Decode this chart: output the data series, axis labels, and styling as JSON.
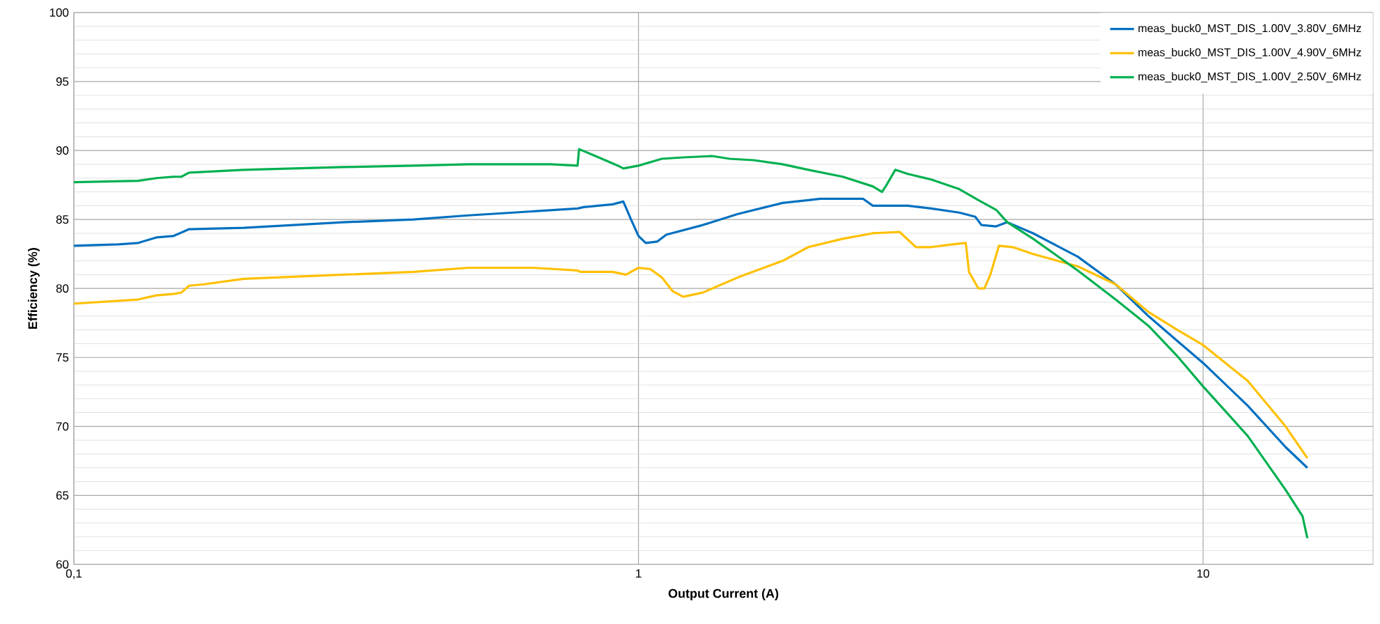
{
  "chart_data": {
    "type": "line",
    "xlabel": "Output Current (A)",
    "ylabel": "Efficiency (%)",
    "log": "x",
    "grid": true,
    "legend": "top right",
    "xlim": [
      0.1,
      20
    ],
    "xticks": [
      {
        "value": 0.1,
        "label": "0,1"
      },
      1,
      10
    ],
    "ylim": [
      60,
      100
    ],
    "yticks": [
      60,
      65,
      70,
      75,
      80,
      85,
      90,
      95,
      100
    ],
    "series": [
      {
        "name": "meas_buck0_MST_DIS_1.00V_3.80V_6MHz",
        "color": "#0070c0",
        "x": [
          0.1,
          0.12,
          0.13,
          0.14,
          0.15,
          0.16,
          0.2,
          0.3,
          0.4,
          0.5,
          0.6,
          0.78,
          0.8,
          0.9,
          0.94,
          0.97,
          1.0,
          1.03,
          1.08,
          1.12,
          1.3,
          1.5,
          1.8,
          2.0,
          2.1,
          2.5,
          2.6,
          3.0,
          3.3,
          3.7,
          3.95,
          4.05,
          4.3,
          4.5,
          5,
          6,
          7,
          8,
          9,
          10,
          12,
          14,
          15.3
        ],
        "values": [
          83.1,
          83.2,
          83.3,
          83.7,
          83.8,
          84.3,
          84.4,
          84.8,
          85.0,
          85.3,
          85.5,
          85.8,
          85.9,
          86.1,
          86.3,
          85.0,
          83.8,
          83.3,
          83.4,
          83.9,
          84.6,
          85.4,
          86.2,
          86.4,
          86.5,
          86.5,
          86.0,
          86.0,
          85.8,
          85.5,
          85.2,
          84.6,
          84.5,
          84.8,
          84.0,
          82.3,
          80.3,
          78.0,
          76.2,
          74.6,
          71.5,
          68.5,
          67.0
        ]
      },
      {
        "name": "meas_buck0_MST_DIS_1.00V_4.90V_6MHz",
        "color": "#ffc000",
        "x": [
          0.1,
          0.13,
          0.14,
          0.15,
          0.155,
          0.16,
          0.17,
          0.2,
          0.3,
          0.4,
          0.5,
          0.65,
          0.78,
          0.79,
          0.9,
          0.95,
          1.0,
          1.05,
          1.1,
          1.15,
          1.2,
          1.3,
          1.5,
          1.8,
          2.0,
          2.3,
          2.6,
          2.9,
          3.1,
          3.3,
          3.6,
          3.8,
          3.85,
          4.0,
          4.1,
          4.2,
          4.35,
          4.6,
          5,
          6,
          7,
          8,
          9,
          10,
          12,
          14,
          15.3
        ],
        "values": [
          78.9,
          79.2,
          79.5,
          79.6,
          79.7,
          80.2,
          80.3,
          80.7,
          81.0,
          81.2,
          81.5,
          81.5,
          81.3,
          81.2,
          81.2,
          81.0,
          81.5,
          81.4,
          80.8,
          79.8,
          79.4,
          79.7,
          80.8,
          82.0,
          83.0,
          83.6,
          84.0,
          84.1,
          83.0,
          83.0,
          83.2,
          83.3,
          81.2,
          80.0,
          80.0,
          81.0,
          83.1,
          83.0,
          82.5,
          81.6,
          80.3,
          78.3,
          77.0,
          75.9,
          73.3,
          70.0,
          67.7
        ]
      },
      {
        "name": "meas_buck0_MST_DIS_1.00V_2.50V_6MHz",
        "color": "#00b050",
        "x": [
          0.1,
          0.13,
          0.14,
          0.15,
          0.155,
          0.16,
          0.2,
          0.3,
          0.4,
          0.5,
          0.7,
          0.78,
          0.785,
          0.85,
          0.92,
          0.94,
          1.0,
          1.1,
          1.2,
          1.35,
          1.45,
          1.6,
          1.8,
          2.0,
          2.3,
          2.6,
          2.7,
          2.75,
          2.85,
          3.0,
          3.3,
          3.7,
          4.0,
          4.3,
          4.5,
          5,
          6,
          7,
          8,
          9,
          10,
          12,
          14,
          15,
          15.3
        ],
        "values": [
          87.7,
          87.8,
          88.0,
          88.1,
          88.1,
          88.4,
          88.6,
          88.8,
          88.9,
          89.0,
          89.0,
          88.9,
          90.1,
          89.5,
          88.9,
          88.7,
          88.9,
          89.4,
          89.5,
          89.6,
          89.4,
          89.3,
          89.0,
          88.6,
          88.1,
          87.4,
          87.0,
          87.5,
          88.6,
          88.3,
          87.9,
          87.2,
          86.4,
          85.7,
          84.8,
          83.6,
          81.3,
          79.2,
          77.3,
          75.1,
          72.9,
          69.3,
          65.4,
          63.5,
          61.9
        ]
      }
    ]
  }
}
